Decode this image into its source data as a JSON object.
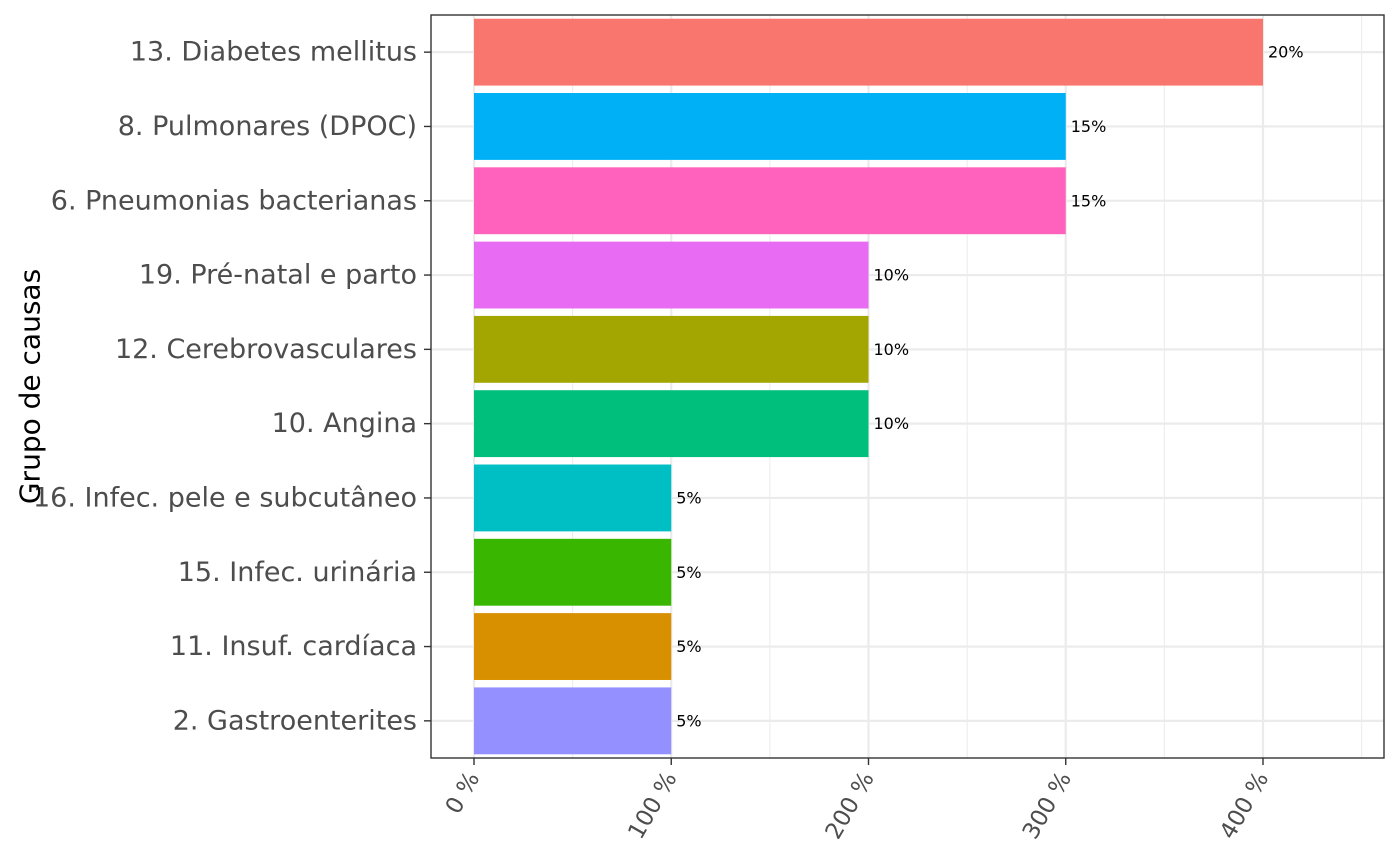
{
  "chart_data": {
    "type": "bar",
    "orientation": "horizontal",
    "title": "",
    "xlabel": "",
    "ylabel": "Grupo de causas",
    "xlim": [
      0,
      450
    ],
    "x_ticks": [
      0,
      100,
      200,
      300,
      400
    ],
    "x_tick_labels": [
      "0 %",
      "100 %",
      "200 %",
      "300 %",
      "400 %"
    ],
    "grid": true,
    "legend": "none",
    "categories": [
      "13. Diabetes mellitus",
      "8. Pulmonares (DPOC)",
      "6. Pneumonias bacterianas",
      "19. Pré-natal e parto",
      "12. Cerebrovasculares",
      "10. Angina",
      "16. Infec. pele e subcutâneo",
      "15. Infec. urinária",
      "11. Insuf. cardíaca",
      "2. Gastroenterites"
    ],
    "values": [
      400,
      300,
      300,
      200,
      200,
      200,
      100,
      100,
      100,
      100
    ],
    "data_labels": [
      "20%",
      "15%",
      "15%",
      "10%",
      "10%",
      "10%",
      "5%",
      "5%",
      "5%",
      "5%"
    ],
    "colors": [
      "#F8766D",
      "#00B0F6",
      "#FF62BC",
      "#E76BF3",
      "#A3A500",
      "#00BF7D",
      "#00BFC4",
      "#39B600",
      "#D89000",
      "#9590FF"
    ]
  }
}
